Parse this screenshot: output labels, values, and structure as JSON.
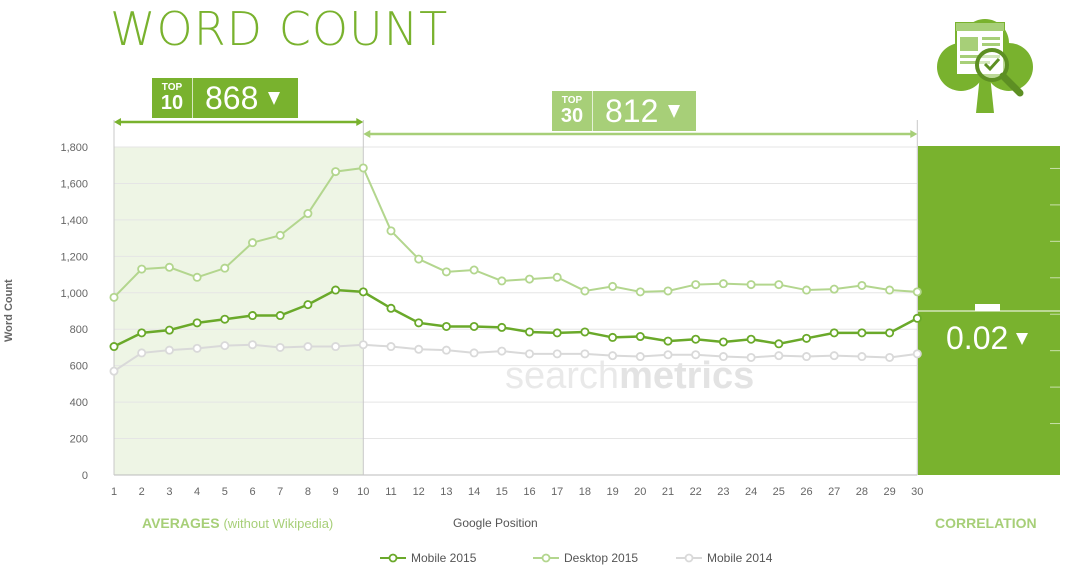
{
  "title": "WORD COUNT",
  "badges": {
    "top10": {
      "tag_line1": "TOP",
      "tag_line2": "10",
      "value": "868"
    },
    "top30": {
      "tag_line1": "TOP",
      "tag_line2": "30",
      "value": "812"
    }
  },
  "correlation": {
    "label": "CORRELATION",
    "value": "0.02"
  },
  "averages": {
    "label": "AVERAGES",
    "sub": "(without Wikipedia)"
  },
  "watermark": {
    "light": "search",
    "bold": "metrics"
  },
  "colors": {
    "mobile2015": "#6aa92a",
    "desktop2015": "#b3d68e",
    "mobile2014": "#d9d9d9",
    "accent": "#79b22e"
  },
  "chart_data": {
    "type": "line",
    "title": "WORD COUNT",
    "xlabel": "Google Position",
    "ylabel": "Word Count",
    "ylim": [
      0,
      1800
    ],
    "yticks": [
      0,
      200,
      400,
      600,
      800,
      1000,
      1200,
      1400,
      1600,
      1800
    ],
    "ytick_labels": [
      "0",
      "200",
      "400",
      "600",
      "800",
      "1,000",
      "1,200",
      "1,400",
      "1,600",
      "1,800"
    ],
    "x": [
      1,
      2,
      3,
      4,
      5,
      6,
      7,
      8,
      9,
      10,
      11,
      12,
      13,
      14,
      15,
      16,
      17,
      18,
      19,
      20,
      21,
      22,
      23,
      24,
      25,
      26,
      27,
      28,
      29,
      30
    ],
    "grid": true,
    "legend_position": "bottom",
    "series": [
      {
        "name": "Mobile 2015",
        "key": "mobile2015",
        "values": [
          705,
          780,
          795,
          835,
          855,
          875,
          875,
          935,
          1015,
          1005,
          915,
          835,
          815,
          815,
          810,
          785,
          780,
          785,
          755,
          760,
          735,
          745,
          730,
          745,
          720,
          750,
          780,
          780,
          780,
          860
        ]
      },
      {
        "name": "Desktop 2015",
        "key": "desktop2015",
        "values": [
          975,
          1130,
          1140,
          1085,
          1135,
          1275,
          1315,
          1435,
          1665,
          1685,
          1340,
          1185,
          1115,
          1125,
          1065,
          1075,
          1085,
          1010,
          1035,
          1005,
          1010,
          1045,
          1050,
          1045,
          1045,
          1015,
          1020,
          1040,
          1015,
          1005
        ]
      },
      {
        "name": "Mobile 2014",
        "key": "mobile2014",
        "values": [
          570,
          670,
          685,
          695,
          710,
          715,
          700,
          705,
          705,
          715,
          705,
          690,
          685,
          670,
          680,
          665,
          665,
          665,
          655,
          650,
          660,
          660,
          650,
          645,
          655,
          650,
          655,
          650,
          645,
          665
        ]
      }
    ]
  }
}
